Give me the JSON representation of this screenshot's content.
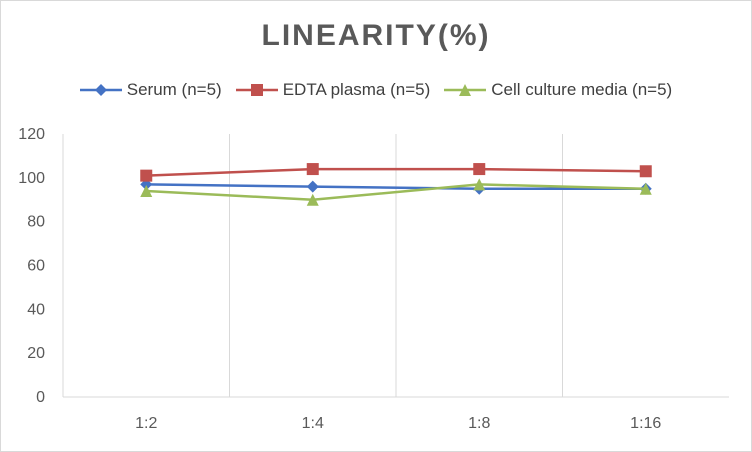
{
  "chart_data": {
    "type": "line",
    "title": "LINEARITY(%)",
    "categories": [
      "1:2",
      "1:4",
      "1:8",
      "1:16"
    ],
    "series": [
      {
        "name": "Serum (n=5)",
        "color": "#4472c4",
        "marker": "diamond",
        "values": [
          97,
          96,
          95,
          95
        ]
      },
      {
        "name": "EDTA plasma (n=5)",
        "color": "#c0504d",
        "marker": "square",
        "values": [
          101,
          104,
          104,
          103
        ]
      },
      {
        "name": "Cell culture media (n=5)",
        "color": "#9bbb59",
        "marker": "triangle",
        "values": [
          94,
          90,
          97,
          95
        ]
      }
    ],
    "ylim": [
      0,
      120
    ],
    "yticks": [
      "0",
      "20",
      "40",
      "60",
      "80",
      "100",
      "120"
    ],
    "grid": "vertical",
    "legend": "top"
  }
}
